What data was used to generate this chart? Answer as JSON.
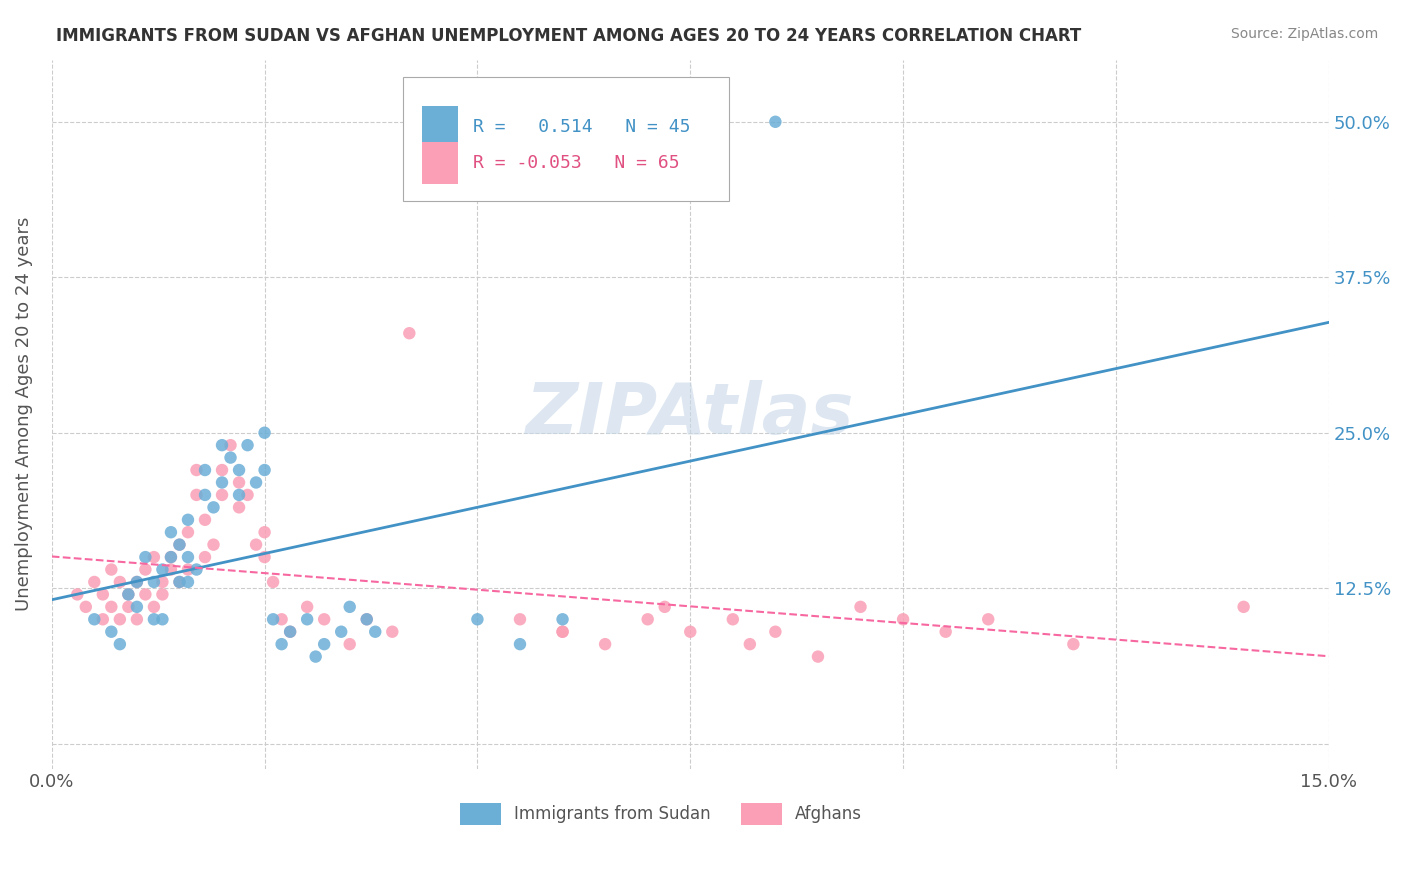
{
  "title": "IMMIGRANTS FROM SUDAN VS AFGHAN UNEMPLOYMENT AMONG AGES 20 TO 24 YEARS CORRELATION CHART",
  "source": "Source: ZipAtlas.com",
  "ylabel": "Unemployment Among Ages 20 to 24 years",
  "xlim": [
    0.0,
    0.15
  ],
  "ylim": [
    -0.02,
    0.55
  ],
  "sudan_color": "#6baed6",
  "afghan_color": "#fa9fb5",
  "sudan_r": 0.514,
  "sudan_n": 45,
  "afghan_r": -0.053,
  "afghan_n": 65,
  "sudan_line_color": "#4292c6",
  "afghan_line_color": "#f768a1",
  "watermark_color": "#c8d8e8",
  "sudan_scatter_x": [
    0.005,
    0.007,
    0.008,
    0.009,
    0.01,
    0.01,
    0.011,
    0.012,
    0.012,
    0.013,
    0.013,
    0.014,
    0.014,
    0.015,
    0.015,
    0.016,
    0.016,
    0.016,
    0.017,
    0.018,
    0.018,
    0.019,
    0.02,
    0.02,
    0.021,
    0.022,
    0.022,
    0.023,
    0.024,
    0.025,
    0.025,
    0.026,
    0.027,
    0.028,
    0.03,
    0.031,
    0.032,
    0.034,
    0.035,
    0.037,
    0.038,
    0.05,
    0.055,
    0.06,
    0.085
  ],
  "sudan_scatter_y": [
    0.1,
    0.09,
    0.08,
    0.12,
    0.13,
    0.11,
    0.15,
    0.1,
    0.13,
    0.14,
    0.1,
    0.17,
    0.15,
    0.16,
    0.13,
    0.18,
    0.15,
    0.13,
    0.14,
    0.2,
    0.22,
    0.19,
    0.24,
    0.21,
    0.23,
    0.22,
    0.2,
    0.24,
    0.21,
    0.22,
    0.25,
    0.1,
    0.08,
    0.09,
    0.1,
    0.07,
    0.08,
    0.09,
    0.11,
    0.1,
    0.09,
    0.1,
    0.08,
    0.1,
    0.5
  ],
  "afghan_scatter_x": [
    0.003,
    0.004,
    0.005,
    0.006,
    0.006,
    0.007,
    0.007,
    0.008,
    0.008,
    0.009,
    0.009,
    0.01,
    0.01,
    0.011,
    0.011,
    0.012,
    0.012,
    0.013,
    0.013,
    0.014,
    0.014,
    0.015,
    0.015,
    0.016,
    0.016,
    0.017,
    0.017,
    0.018,
    0.018,
    0.019,
    0.02,
    0.02,
    0.021,
    0.022,
    0.022,
    0.023,
    0.024,
    0.025,
    0.025,
    0.026,
    0.027,
    0.028,
    0.03,
    0.032,
    0.035,
    0.037,
    0.04,
    0.042,
    0.055,
    0.06,
    0.06,
    0.065,
    0.07,
    0.072,
    0.075,
    0.08,
    0.082,
    0.085,
    0.09,
    0.095,
    0.1,
    0.105,
    0.11,
    0.12,
    0.14
  ],
  "afghan_scatter_y": [
    0.12,
    0.11,
    0.13,
    0.1,
    0.12,
    0.11,
    0.14,
    0.1,
    0.13,
    0.11,
    0.12,
    0.13,
    0.1,
    0.14,
    0.12,
    0.15,
    0.11,
    0.13,
    0.12,
    0.14,
    0.15,
    0.16,
    0.13,
    0.17,
    0.14,
    0.2,
    0.22,
    0.18,
    0.15,
    0.16,
    0.22,
    0.2,
    0.24,
    0.21,
    0.19,
    0.2,
    0.16,
    0.17,
    0.15,
    0.13,
    0.1,
    0.09,
    0.11,
    0.1,
    0.08,
    0.1,
    0.09,
    0.33,
    0.1,
    0.09,
    0.09,
    0.08,
    0.1,
    0.11,
    0.09,
    0.1,
    0.08,
    0.09,
    0.07,
    0.11,
    0.1,
    0.09,
    0.1,
    0.08,
    0.11
  ]
}
